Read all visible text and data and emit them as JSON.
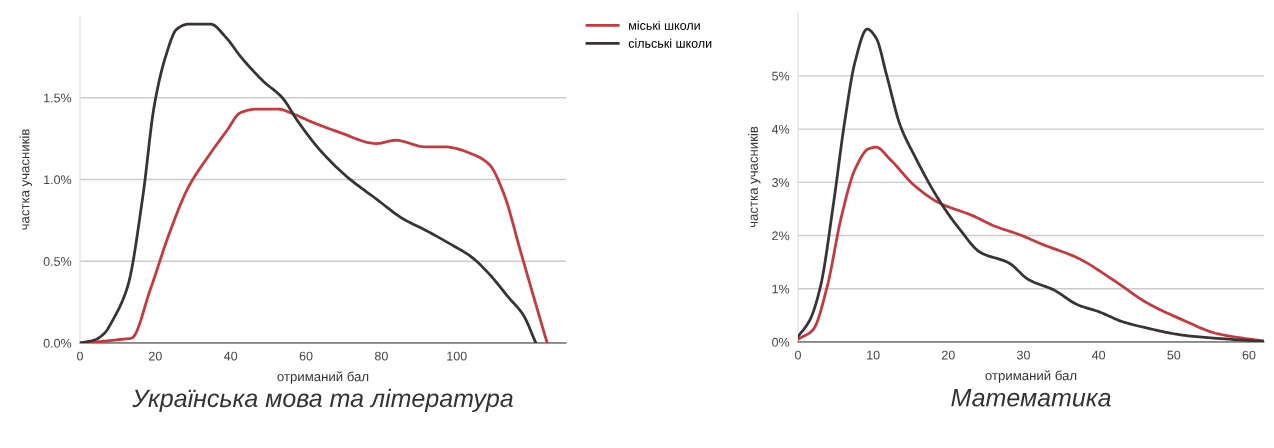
{
  "chart_data": [
    {
      "type": "line",
      "title": "Українська мова та література",
      "xlabel": "отриманий бал",
      "ylabel": "частка учасників",
      "legend": "right",
      "grid": "y",
      "xlim": [
        0,
        129
      ],
      "xticks": [
        0,
        20,
        40,
        60,
        80,
        100
      ],
      "ylim": [
        0,
        2.0
      ],
      "yticks": [
        {
          "value": 0,
          "label": "0.0%"
        },
        {
          "value": 0.5,
          "label": "0.5%"
        },
        {
          "value": 1.0,
          "label": "1.0%"
        },
        {
          "value": 1.5,
          "label": "1.5%"
        }
      ],
      "series": [
        {
          "name": "міські школи",
          "color": "#c8393f",
          "x": [
            0,
            6,
            10,
            13.7,
            18.7,
            23.7,
            28.7,
            33.7,
            38.7,
            42.7,
            46.7,
            52.7,
            56.7,
            61.7,
            68.7,
            78.7,
            83.7,
            91.7,
            96.7,
            104.7,
            108.7,
            112.7,
            116.7,
            120.7,
            124
          ],
          "values": [
            0,
            0.01,
            0.02,
            0.03,
            0.33,
            0.67,
            0.95,
            1.13,
            1.29,
            1.41,
            1.43,
            1.43,
            1.4,
            1.35,
            1.29,
            1.22,
            1.24,
            1.2,
            1.2,
            1.15,
            1.09,
            0.9,
            0.58,
            0.26,
            0
          ]
        },
        {
          "name": "сільські школи",
          "color": "#3a3336",
          "x": [
            0,
            4,
            6.5,
            8.7,
            12.7,
            16.7,
            19.7,
            22.7,
            25.7,
            28.7,
            34.7,
            38.7,
            42.7,
            48.7,
            53.7,
            57.7,
            63.7,
            70.7,
            78.7,
            85.7,
            91.7,
            98.7,
            103.7,
            108.7,
            113.7,
            117.7,
            121
          ],
          "values": [
            0,
            0.02,
            0.06,
            0.14,
            0.35,
            0.9,
            1.45,
            1.75,
            1.92,
            1.95,
            1.95,
            1.87,
            1.75,
            1.6,
            1.5,
            1.36,
            1.18,
            1.02,
            0.88,
            0.76,
            0.69,
            0.6,
            0.53,
            0.42,
            0.28,
            0.17,
            0
          ]
        }
      ]
    },
    {
      "type": "line",
      "title": "Математика",
      "xlabel": "отриманий бал",
      "ylabel": "частка учасників",
      "grid": "y",
      "xlim": [
        0,
        62
      ],
      "xticks": [
        0,
        10,
        20,
        30,
        40,
        50,
        60
      ],
      "ylim": [
        0,
        6.2
      ],
      "yticks": [
        {
          "value": 0,
          "label": "0%"
        },
        {
          "value": 1,
          "label": "1%"
        },
        {
          "value": 2,
          "label": "2%"
        },
        {
          "value": 3,
          "label": "3%"
        },
        {
          "value": 4,
          "label": "4%"
        },
        {
          "value": 5,
          "label": "5%"
        }
      ],
      "series": [
        {
          "color": "#c8393f",
          "x": [
            0,
            2.0,
            3.9,
            5.7,
            7.6,
            9.4,
            10.4,
            12.2,
            15.5,
            18.7,
            23.3,
            26.1,
            29.4,
            32.6,
            37.2,
            41.9,
            46.5,
            51.1,
            55.7,
            60.3,
            62
          ],
          "values": [
            0.05,
            0.23,
            1.05,
            2.31,
            3.25,
            3.63,
            3.66,
            3.44,
            2.94,
            2.62,
            2.37,
            2.18,
            2.02,
            1.83,
            1.58,
            1.17,
            0.73,
            0.42,
            0.16,
            0.05,
            0.02
          ]
        },
        {
          "color": "#3a3336",
          "x": [
            0,
            1.6,
            3.0,
            4.8,
            6.2,
            7.6,
            9.2,
            10.4,
            11.8,
            13.6,
            15.5,
            18.7,
            21.5,
            24.3,
            28.0,
            30.7,
            34.0,
            37.2,
            40.0,
            43.2,
            46.5,
            51.1,
            55.7,
            62
          ],
          "values": [
            0.1,
            0.42,
            1.05,
            2.68,
            4.13,
            5.27,
            5.88,
            5.71,
            5.01,
            4.07,
            3.5,
            2.68,
            2.12,
            1.68,
            1.49,
            1.17,
            0.98,
            0.7,
            0.57,
            0.38,
            0.26,
            0.13,
            0.07,
            0.01
          ]
        }
      ]
    }
  ]
}
